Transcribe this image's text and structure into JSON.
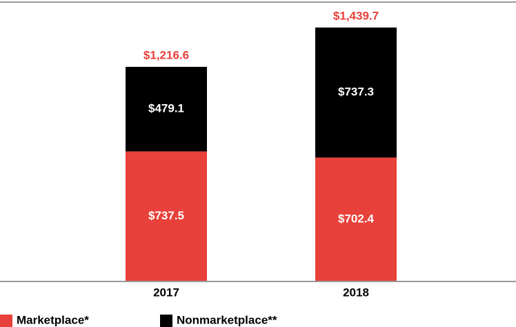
{
  "chart_data": {
    "type": "bar",
    "stacked": true,
    "categories": [
      "2017",
      "2018"
    ],
    "series": [
      {
        "name": "Marketplace*",
        "color": "#e8403a",
        "values": [
          737.5,
          702.4
        ],
        "value_labels": [
          "$737.5",
          "$702.4"
        ]
      },
      {
        "name": "Nonmarketplace**",
        "color": "#000000",
        "values": [
          479.1,
          737.3
        ],
        "value_labels": [
          "$479.1",
          "$737.3"
        ]
      }
    ],
    "totals": [
      1216.6,
      1439.7
    ],
    "total_labels": [
      "$1,216.6",
      "$1,439.7"
    ],
    "total_color": "#e8403a",
    "ylim": [
      0,
      1580
    ]
  }
}
